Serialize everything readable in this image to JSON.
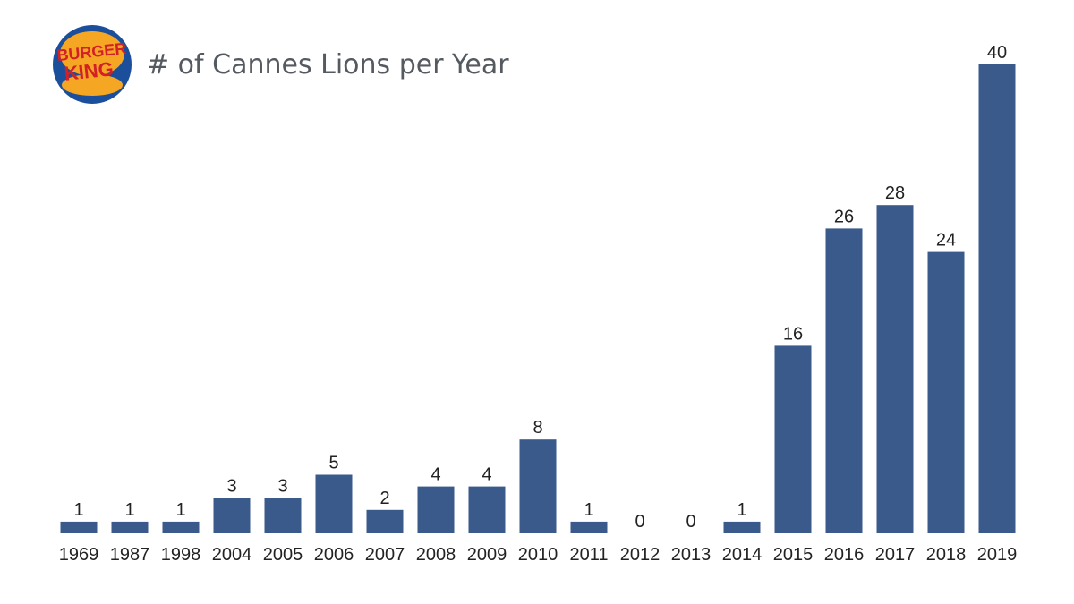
{
  "logo": {
    "brand": "BURGER KING",
    "word_top": "BURGER",
    "word_bottom": "KING",
    "colors": {
      "bun": "#f5a623",
      "ring": "#1b4f9c",
      "text": "#d32028"
    }
  },
  "chart_data": {
    "type": "bar",
    "title": "# of Cannes Lions per Year",
    "xlabel": "",
    "ylabel": "",
    "categories": [
      "1969",
      "1987",
      "1998",
      "2004",
      "2005",
      "2006",
      "2007",
      "2008",
      "2009",
      "2010",
      "2011",
      "2012",
      "2013",
      "2014",
      "2015",
      "2016",
      "2017",
      "2018",
      "2019"
    ],
    "values": [
      1,
      1,
      1,
      3,
      3,
      5,
      2,
      4,
      4,
      8,
      1,
      0,
      0,
      1,
      16,
      26,
      28,
      24,
      40
    ],
    "ylim": [
      0,
      40
    ],
    "grid": false,
    "legend": "none",
    "data_labels": true,
    "bar_color": "#3a5a8c"
  }
}
